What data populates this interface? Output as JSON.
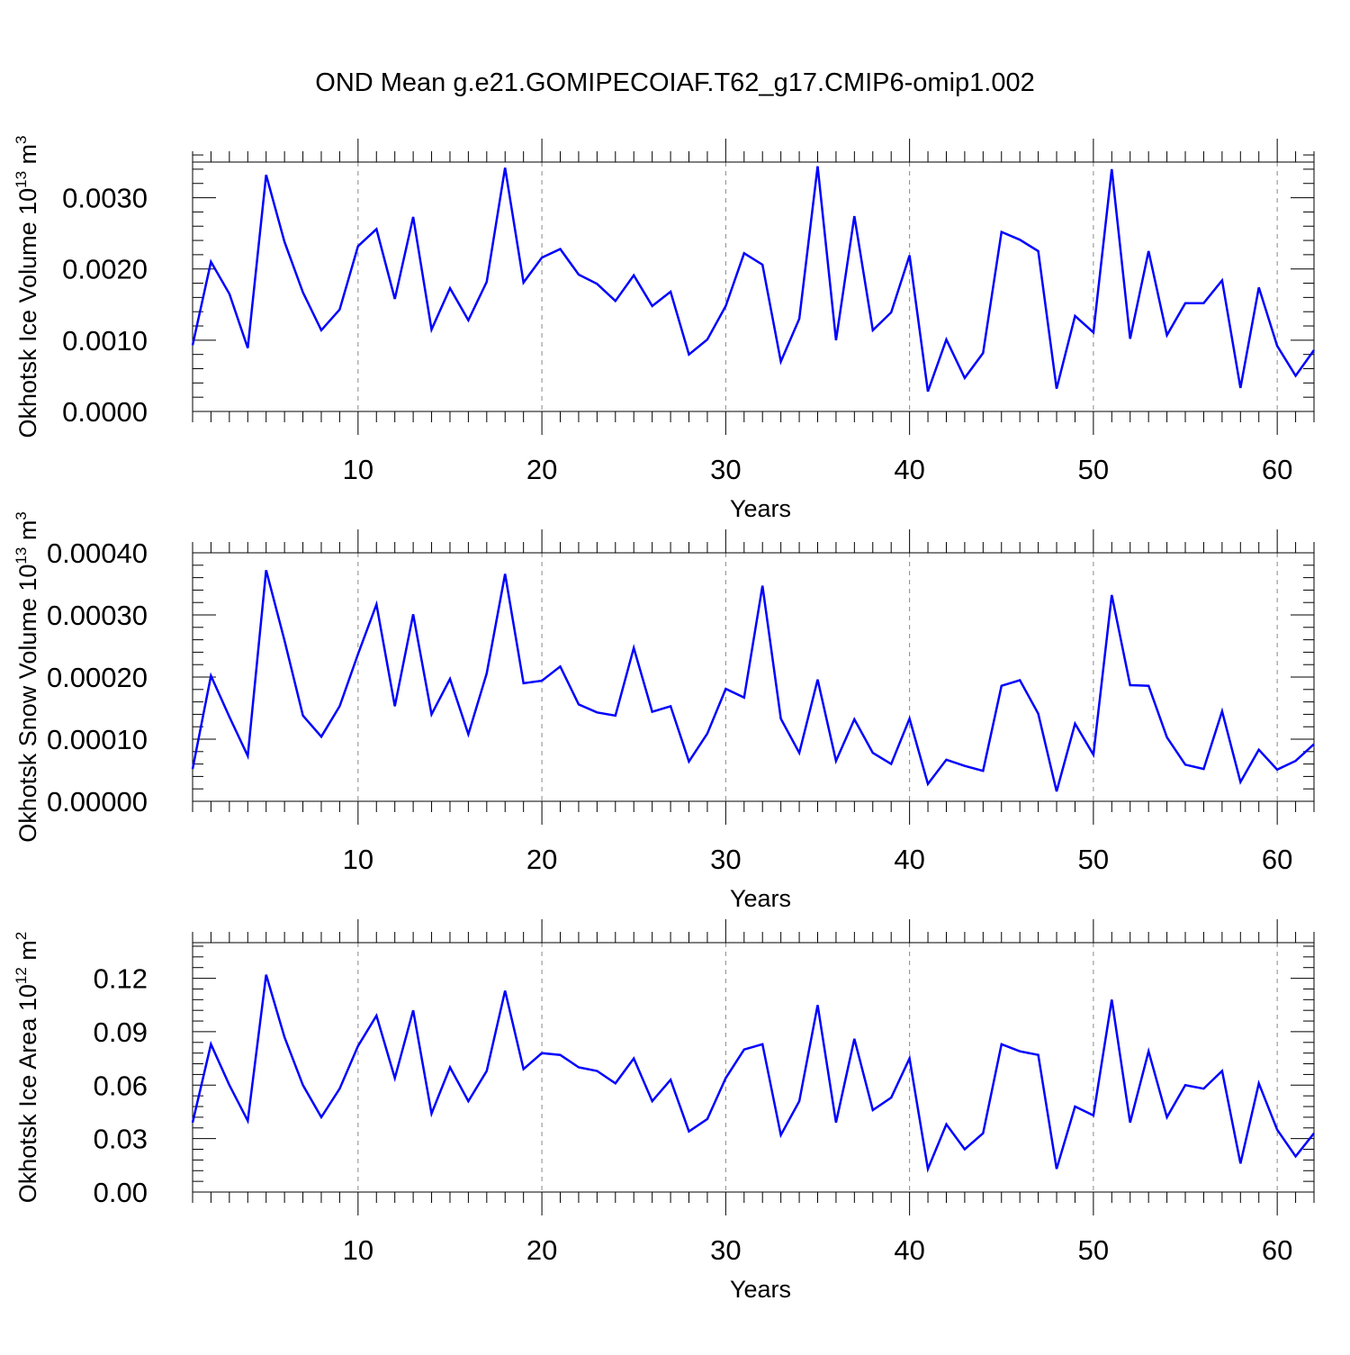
{
  "title": "OND Mean g.e21.GOMIPECOIAF.T62_g17.CMIP6-omip1.002",
  "line_color": "#0000ff",
  "chart_data": [
    {
      "type": "line",
      "ylabel_prefix": "Okhotsk Ice Volume 10",
      "ylabel_exp": "13",
      "ylabel_unit": " m",
      "ylabel_unit_exp": "3",
      "xlabel": "Years",
      "xlim": [
        1,
        62
      ],
      "ylim": [
        0,
        0.0035
      ],
      "yticks": [
        0,
        0.001,
        0.002,
        0.003
      ],
      "ytick_labels": [
        "0.0000",
        "0.0010",
        "0.0020",
        "0.0030"
      ],
      "yminor_step": 0.0002,
      "xticks": [
        10,
        20,
        30,
        40,
        50,
        60
      ],
      "xtick_labels": [
        "10",
        "20",
        "30",
        "40",
        "50",
        "60"
      ],
      "x": [
        1,
        2,
        3,
        4,
        5,
        6,
        7,
        8,
        9,
        10,
        11,
        12,
        13,
        14,
        15,
        16,
        17,
        18,
        19,
        20,
        21,
        22,
        23,
        24,
        25,
        26,
        27,
        28,
        29,
        30,
        31,
        32,
        33,
        34,
        35,
        36,
        37,
        38,
        39,
        40,
        41,
        42,
        43,
        44,
        45,
        46,
        47,
        48,
        49,
        50,
        51,
        52,
        53,
        54,
        55,
        56,
        57,
        58,
        59,
        60,
        61,
        62
      ],
      "y": [
        0.00093,
        0.0021,
        0.00165,
        0.00089,
        0.00332,
        0.00238,
        0.00167,
        0.00114,
        0.00143,
        0.00232,
        0.00256,
        0.00158,
        0.00273,
        0.00115,
        0.00173,
        0.00128,
        0.00182,
        0.00342,
        0.00181,
        0.00216,
        0.00228,
        0.00192,
        0.00179,
        0.00155,
        0.00191,
        0.00148,
        0.00168,
        0.0008,
        0.00101,
        0.00148,
        0.00222,
        0.00206,
        0.0007,
        0.0013,
        0.00344,
        0.001,
        0.00274,
        0.00114,
        0.00139,
        0.00219,
        0.00028,
        0.00101,
        0.00047,
        0.00082,
        0.00252,
        0.00241,
        0.00225,
        0.00032,
        0.00134,
        0.00111,
        0.0034,
        0.00102,
        0.00225,
        0.00107,
        0.00152,
        0.00152,
        0.00184,
        0.00033,
        0.00174,
        0.00092,
        0.0005,
        0.00086
      ]
    },
    {
      "type": "line",
      "ylabel_prefix": "Okhotsk Snow Volume 10",
      "ylabel_exp": "13",
      "ylabel_unit": " m",
      "ylabel_unit_exp": "3",
      "xlabel": "Years",
      "xlim": [
        1,
        62
      ],
      "ylim": [
        0,
        0.0004
      ],
      "yticks": [
        0,
        0.0001,
        0.0002,
        0.0003,
        0.0004
      ],
      "ytick_labels": [
        "0.00000",
        "0.00010",
        "0.00020",
        "0.00030",
        "0.00040"
      ],
      "yminor_step": 2e-05,
      "xticks": [
        10,
        20,
        30,
        40,
        50,
        60
      ],
      "xtick_labels": [
        "10",
        "20",
        "30",
        "40",
        "50",
        "60"
      ],
      "x": [
        1,
        2,
        3,
        4,
        5,
        6,
        7,
        8,
        9,
        10,
        11,
        12,
        13,
        14,
        15,
        16,
        17,
        18,
        19,
        20,
        21,
        22,
        23,
        24,
        25,
        26,
        27,
        28,
        29,
        30,
        31,
        32,
        33,
        34,
        35,
        36,
        37,
        38,
        39,
        40,
        41,
        42,
        43,
        44,
        45,
        46,
        47,
        48,
        49,
        50,
        51,
        52,
        53,
        54,
        55,
        56,
        57,
        58,
        59,
        60,
        61,
        62
      ],
      "y": [
        5.2e-05,
        0.000202,
        0.000136,
        7.3e-05,
        0.000372,
        0.000259,
        0.000138,
        0.000104,
        0.000153,
        0.000237,
        0.000317,
        0.000153,
        0.000301,
        0.00014,
        0.000197,
        0.000108,
        0.000206,
        0.000366,
        0.00019,
        0.000194,
        0.000217,
        0.000156,
        0.000143,
        0.000138,
        0.000247,
        0.000144,
        0.000153,
        6.4e-05,
        0.000109,
        0.000181,
        0.000167,
        0.000347,
        0.000133,
        7.8e-05,
        0.000196,
        6.5e-05,
        0.000132,
        7.8e-05,
        6e-05,
        0.000133,
        2.8e-05,
        6.7e-05,
        5.7e-05,
        4.9e-05,
        0.000186,
        0.000195,
        0.000141,
        1.6e-05,
        0.000125,
        7.5e-05,
        0.000332,
        0.000187,
        0.000186,
        0.000103,
        5.9e-05,
        5.2e-05,
        0.000145,
        3.1e-05,
        8.3e-05,
        5.1e-05,
        6.5e-05,
        9.2e-05
      ]
    },
    {
      "type": "line",
      "ylabel_prefix": "Okhotsk Ice Area 10",
      "ylabel_exp": "12",
      "ylabel_unit": " m",
      "ylabel_unit_exp": "2",
      "xlabel": "Years",
      "xlim": [
        1,
        62
      ],
      "ylim": [
        0,
        0.14
      ],
      "yticks": [
        0,
        0.03,
        0.06,
        0.09,
        0.12
      ],
      "ytick_labels": [
        "0.00",
        "0.03",
        "0.06",
        "0.09",
        "0.12"
      ],
      "yminor_step": 0.006,
      "xticks": [
        10,
        20,
        30,
        40,
        50,
        60
      ],
      "xtick_labels": [
        "10",
        "20",
        "30",
        "40",
        "50",
        "60"
      ],
      "x": [
        1,
        2,
        3,
        4,
        5,
        6,
        7,
        8,
        9,
        10,
        11,
        12,
        13,
        14,
        15,
        16,
        17,
        18,
        19,
        20,
        21,
        22,
        23,
        24,
        25,
        26,
        27,
        28,
        29,
        30,
        31,
        32,
        33,
        34,
        35,
        36,
        37,
        38,
        39,
        40,
        41,
        42,
        43,
        44,
        45,
        46,
        47,
        48,
        49,
        50,
        51,
        52,
        53,
        54,
        55,
        56,
        57,
        58,
        59,
        60,
        61,
        62
      ],
      "y": [
        0.039,
        0.083,
        0.06,
        0.04,
        0.122,
        0.087,
        0.06,
        0.042,
        0.058,
        0.082,
        0.099,
        0.064,
        0.102,
        0.044,
        0.07,
        0.051,
        0.068,
        0.113,
        0.069,
        0.078,
        0.077,
        0.07,
        0.068,
        0.061,
        0.075,
        0.051,
        0.063,
        0.034,
        0.041,
        0.064,
        0.08,
        0.083,
        0.032,
        0.051,
        0.105,
        0.039,
        0.086,
        0.046,
        0.053,
        0.075,
        0.013,
        0.038,
        0.024,
        0.033,
        0.083,
        0.079,
        0.077,
        0.013,
        0.048,
        0.043,
        0.108,
        0.039,
        0.079,
        0.042,
        0.06,
        0.058,
        0.068,
        0.016,
        0.061,
        0.035,
        0.02,
        0.033
      ]
    }
  ]
}
